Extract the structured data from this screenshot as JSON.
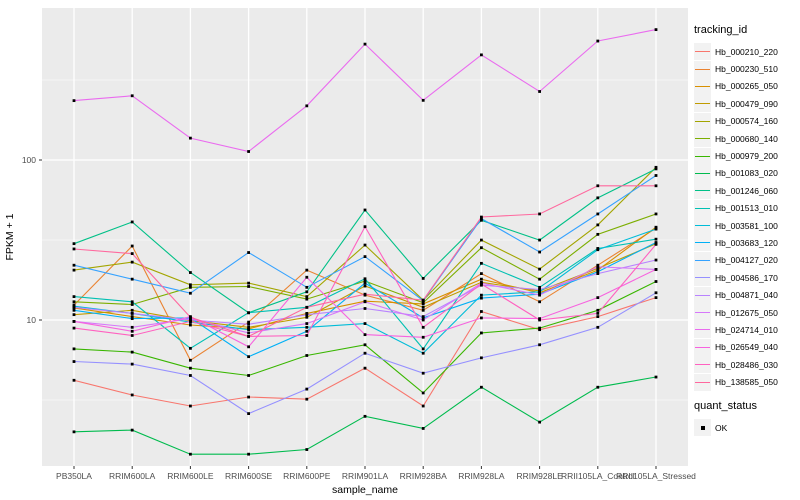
{
  "chart_data": {
    "type": "line",
    "title": "",
    "xlabel": "sample_name",
    "ylabel": "FPKM + 1",
    "y_scale": "log10",
    "y_ticks": [
      10,
      100
    ],
    "y_minor_ticks": [
      3.162,
      31.62,
      316.2
    ],
    "ylim": [
      1.2,
      890
    ],
    "grid": "on",
    "panel_bg": "#EBEBEB",
    "grid_color": "#FFFFFF",
    "point_shape": "square",
    "point_color": "#000000",
    "categories": [
      "PB350LA",
      "RRIM600LA",
      "RRIM600LE",
      "RRIM600SE",
      "RRIM600PE",
      "RRIM901LA",
      "RRIM928BA",
      "RRIM928LA",
      "RRIM928LE",
      "RRII105LA_Control",
      "RRII105LA_Stressed"
    ],
    "legend": {
      "title": "tracking_id",
      "position": "right"
    },
    "legend2": {
      "title": "quant_status",
      "items": [
        "OK"
      ]
    },
    "series": [
      {
        "name": "Hb_000210_220",
        "color": "#F8766D",
        "values": [
          4.2,
          3.4,
          2.9,
          3.3,
          3.2,
          5.0,
          2.9,
          11.3,
          8.7,
          10.5,
          13.8
        ]
      },
      {
        "name": "Hb_000230_510",
        "color": "#EA8331",
        "values": [
          12.4,
          29.0,
          5.6,
          9.7,
          20.5,
          14.3,
          11.5,
          19.5,
          13.0,
          22.0,
          37.5
        ]
      },
      {
        "name": "Hb_000265_050",
        "color": "#D89000",
        "values": [
          11.9,
          10.5,
          9.3,
          8.8,
          11.0,
          13.1,
          12.6,
          18.0,
          14.8,
          20.5,
          38.0
        ]
      },
      {
        "name": "Hb_000479_090",
        "color": "#C09B00",
        "values": [
          10.8,
          11.5,
          9.9,
          9.0,
          10.4,
          16.3,
          12.0,
          17.2,
          15.2,
          21.0,
          30.0
        ]
      },
      {
        "name": "Hb_000574_160",
        "color": "#A3A500",
        "values": [
          20.5,
          23.0,
          16.6,
          17.0,
          14.0,
          29.4,
          13.3,
          31.6,
          20.8,
          39.3,
          90.0
        ]
      },
      {
        "name": "Hb_000680_140",
        "color": "#7CAE00",
        "values": [
          13.0,
          12.5,
          16.0,
          16.2,
          13.5,
          17.5,
          12.8,
          28.3,
          18.0,
          34.3,
          46.0
        ]
      },
      {
        "name": "Hb_000979_200",
        "color": "#39B600",
        "values": [
          6.6,
          6.3,
          5.0,
          4.5,
          6.0,
          7.0,
          3.5,
          8.3,
          8.9,
          11.5,
          17.4
        ]
      },
      {
        "name": "Hb_001083_020",
        "color": "#00BB4E",
        "values": [
          2.0,
          2.05,
          1.45,
          1.45,
          1.55,
          2.5,
          2.1,
          3.8,
          2.3,
          3.8,
          4.4
        ]
      },
      {
        "name": "Hb_001246_060",
        "color": "#00C087",
        "values": [
          30.0,
          41.0,
          19.8,
          11.1,
          15.0,
          48.7,
          18.2,
          42.0,
          31.6,
          58.0,
          88.0
        ]
      },
      {
        "name": "Hb_001513_010",
        "color": "#00C0B2",
        "values": [
          14.0,
          13.0,
          6.65,
          11.1,
          12.0,
          18.1,
          6.6,
          22.6,
          16.0,
          28.0,
          32.0
        ]
      },
      {
        "name": "Hb_003581_100",
        "color": "#00BCD8",
        "values": [
          12.2,
          11.0,
          9.7,
          8.7,
          9.0,
          9.5,
          6.2,
          14.3,
          15.0,
          27.5,
          37.0
        ]
      },
      {
        "name": "Hb_003683_120",
        "color": "#00B0F6",
        "values": [
          11.5,
          10.2,
          10.3,
          5.9,
          8.5,
          17.0,
          10.3,
          13.7,
          14.5,
          20.0,
          30.5
        ]
      },
      {
        "name": "Hb_004127_020",
        "color": "#35A2FF",
        "values": [
          22.0,
          18.0,
          14.7,
          26.4,
          16.0,
          24.9,
          13.2,
          43.0,
          26.6,
          46.0,
          80.0
        ]
      },
      {
        "name": "Hb_004586_170",
        "color": "#9590FF",
        "values": [
          5.5,
          5.3,
          4.5,
          2.6,
          3.7,
          6.2,
          4.65,
          5.8,
          7.0,
          9.0,
          14.8
        ]
      },
      {
        "name": "Hb_004871_040",
        "color": "#B983FF",
        "values": [
          12.0,
          11.0,
          10.0,
          9.4,
          10.8,
          11.8,
          10.5,
          16.5,
          15.5,
          19.5,
          23.7
        ]
      },
      {
        "name": "Hb_012675_050",
        "color": "#D678FA",
        "values": [
          9.8,
          9.0,
          10.2,
          8.3,
          9.5,
          13.0,
          10.0,
          17.0,
          14.3,
          21.5,
          20.7
        ]
      },
      {
        "name": "Hb_024714_010",
        "color": "#EA6BEF",
        "values": [
          235,
          252,
          137,
          113,
          218,
          530,
          236,
          454,
          268,
          554,
          653
        ]
      },
      {
        "name": "Hb_026549_040",
        "color": "#F763DF",
        "values": [
          9.8,
          8.5,
          10.5,
          6.8,
          18.5,
          8.1,
          7.8,
          10.3,
          10.2,
          13.8,
          20.7
        ]
      },
      {
        "name": "Hb_028486_030",
        "color": "#FF61C0",
        "values": [
          8.9,
          8.0,
          9.8,
          7.9,
          8.0,
          38.3,
          9.0,
          16.8,
          10.0,
          11.0,
          29.7
        ]
      },
      {
        "name": "Hb_138585_050",
        "color": "#FF689E",
        "values": [
          27.8,
          26.0,
          10.4,
          7.9,
          12.0,
          14.5,
          13.3,
          44.0,
          46.0,
          69.0,
          69.0
        ]
      }
    ]
  }
}
